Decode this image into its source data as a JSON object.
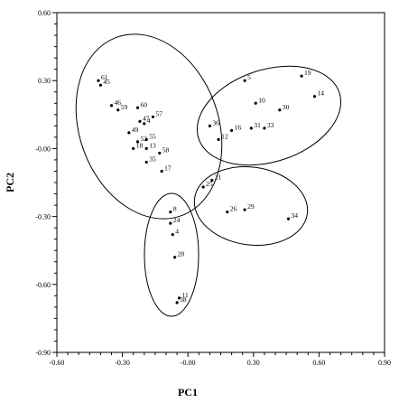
{
  "chart_data": {
    "type": "scatter",
    "xlabel": "PC1",
    "ylabel": "PC2",
    "xlim": [
      -0.6,
      0.9
    ],
    "ylim": [
      -0.9,
      0.6
    ],
    "xticks": [
      -0.6,
      -0.3,
      0.0,
      0.3,
      0.6,
      0.9
    ],
    "yticks": [
      0.6,
      0.3,
      0.0,
      -0.3,
      -0.6,
      -0.9
    ],
    "xtick_labels": [
      "-0.60",
      "-0.30",
      "-0.00",
      "0.30",
      "0.60",
      "0.90"
    ],
    "ytick_labels": [
      "0.60",
      "0.30",
      "-0.00",
      "-0.30",
      "-0.60",
      "-0.90"
    ],
    "grid": false,
    "points": [
      {
        "label": "61",
        "x": -0.41,
        "y": 0.3
      },
      {
        "label": "45",
        "x": -0.4,
        "y": 0.28
      },
      {
        "label": "46",
        "x": -0.35,
        "y": 0.19
      },
      {
        "label": "59",
        "x": -0.32,
        "y": 0.17
      },
      {
        "label": "60",
        "x": -0.23,
        "y": 0.18
      },
      {
        "label": "57",
        "x": -0.16,
        "y": 0.14
      },
      {
        "label": "47",
        "x": -0.22,
        "y": 0.12
      },
      {
        "label": "4",
        "x": -0.2,
        "y": 0.11
      },
      {
        "label": "49",
        "x": -0.27,
        "y": 0.07
      },
      {
        "label": "55",
        "x": -0.19,
        "y": 0.04
      },
      {
        "label": "52",
        "x": -0.23,
        "y": 0.03
      },
      {
        "label": "18",
        "x": -0.25,
        "y": 0.0
      },
      {
        "label": "13",
        "x": -0.19,
        "y": 0.0
      },
      {
        "label": "58",
        "x": -0.13,
        "y": -0.02
      },
      {
        "label": "35",
        "x": -0.19,
        "y": -0.06
      },
      {
        "label": "17",
        "x": -0.12,
        "y": -0.1
      },
      {
        "label": "5",
        "x": 0.26,
        "y": 0.3
      },
      {
        "label": "19",
        "x": 0.52,
        "y": 0.32
      },
      {
        "label": "14",
        "x": 0.58,
        "y": 0.23
      },
      {
        "label": "10",
        "x": 0.31,
        "y": 0.2
      },
      {
        "label": "30",
        "x": 0.42,
        "y": 0.17
      },
      {
        "label": "36",
        "x": 0.1,
        "y": 0.1
      },
      {
        "label": "16",
        "x": 0.2,
        "y": 0.08
      },
      {
        "label": "12",
        "x": 0.14,
        "y": 0.04
      },
      {
        "label": "31",
        "x": 0.29,
        "y": 0.09
      },
      {
        "label": "33",
        "x": 0.35,
        "y": 0.09
      },
      {
        "label": "21",
        "x": 0.11,
        "y": -0.14
      },
      {
        "label": "25",
        "x": 0.07,
        "y": -0.17
      },
      {
        "label": "29",
        "x": 0.26,
        "y": -0.27
      },
      {
        "label": "26",
        "x": 0.18,
        "y": -0.28
      },
      {
        "label": "34",
        "x": 0.46,
        "y": -0.31
      },
      {
        "label": "8",
        "x": -0.08,
        "y": -0.28
      },
      {
        "label": "24",
        "x": -0.08,
        "y": -0.33
      },
      {
        "label": "4",
        "x": -0.07,
        "y": -0.38
      },
      {
        "label": "28",
        "x": -0.06,
        "y": -0.48
      },
      {
        "label": "11",
        "x": -0.04,
        "y": -0.66
      },
      {
        "label": "38",
        "x": -0.05,
        "y": -0.68
      }
    ]
  }
}
